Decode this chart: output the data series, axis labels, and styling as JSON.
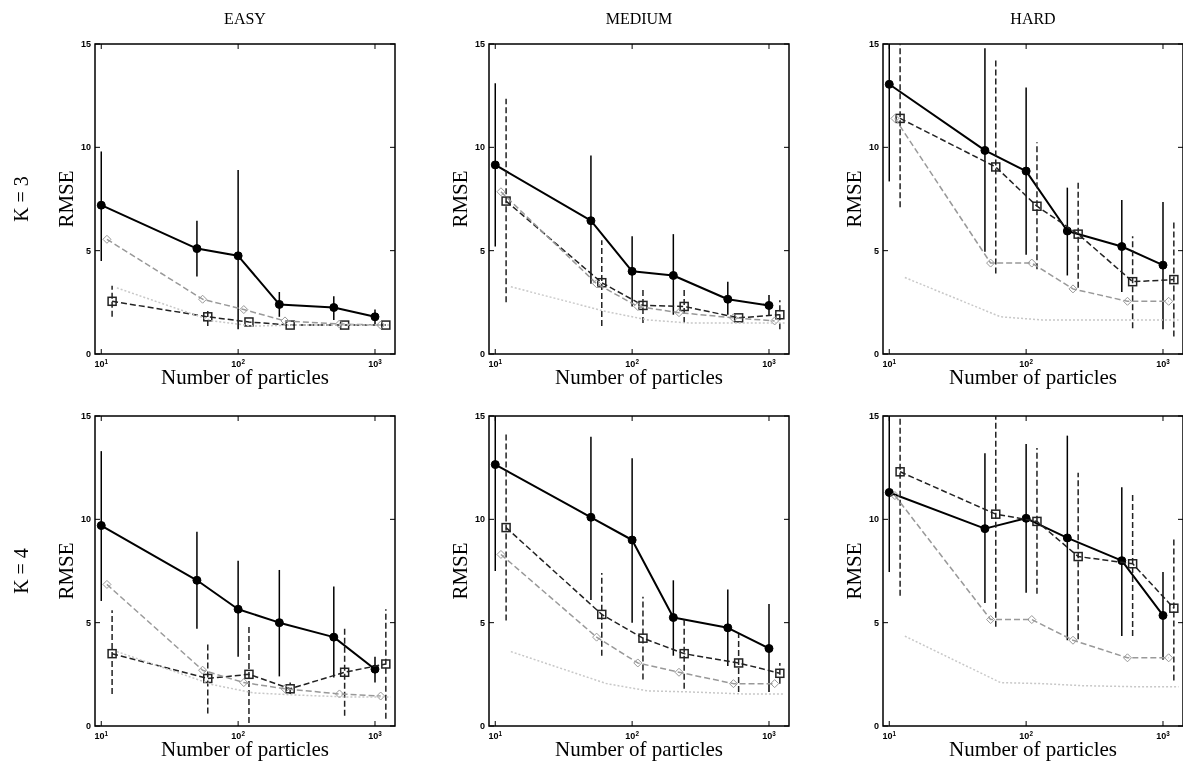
{
  "chart_data": [
    {
      "type": "line",
      "title": "EASY",
      "xlabel": "Number of particles",
      "ylabel": "RMSE",
      "annotations": [
        "K = 3"
      ],
      "log": "x",
      "xlim": [
        9,
        1400
      ],
      "xticks": [
        {
          "value": 10,
          "label": "10$^{1}$"
        },
        {
          "value": 100,
          "label": "10$^{2}$"
        },
        {
          "value": 1000,
          "label": "10$^{3}$"
        }
      ],
      "ylim": [
        0,
        15
      ],
      "yticks": [
        0,
        5,
        10,
        15
      ],
      "series": [
        {
          "color": "#000000",
          "marker": "circle",
          "line_style": "solid",
          "x": [
            10,
            50,
            100,
            200,
            500,
            1000
          ],
          "values": [
            7.2,
            5.1,
            4.75,
            2.4,
            2.25,
            1.8
          ],
          "errors": [
            [
              4.5,
              9.8
            ],
            [
              3.75,
              6.45
            ],
            [
              1.2,
              8.9
            ],
            [
              1.8,
              3.0
            ],
            [
              1.65,
              2.8
            ],
            [
              1.45,
              2.15
            ]
          ]
        },
        {
          "color": "#222222",
          "marker": "square",
          "line_style": "dashed",
          "x": [
            12,
            60,
            120,
            240,
            600,
            1200
          ],
          "values": [
            2.55,
            1.8,
            1.55,
            1.4,
            1.4,
            1.4
          ],
          "errors": [
            [
              1.8,
              3.3
            ],
            [
              1.35,
              2.15
            ],
            null,
            null,
            null,
            null
          ]
        },
        {
          "color": "#999999",
          "marker": "diamond",
          "line_style": "dashed",
          "x": [
            11,
            55,
            110,
            220,
            550,
            1100
          ],
          "values": [
            5.55,
            2.65,
            2.15,
            1.6,
            1.45,
            1.4
          ]
        },
        {
          "color": "#c8c8c8",
          "marker": "none",
          "line_style": "dotted",
          "x": [
            13,
            65,
            130,
            260,
            650,
            1300
          ],
          "values": [
            3.2,
            1.6,
            1.35,
            1.4,
            1.4,
            1.4
          ]
        }
      ]
    },
    {
      "type": "line",
      "title": "MEDIUM",
      "xlabel": "Number of particles",
      "ylabel": "RMSE",
      "log": "x",
      "xlim": [
        9,
        1400
      ],
      "xticks": [
        {
          "value": 10,
          "label": "10$^{1}$"
        },
        {
          "value": 100,
          "label": "10$^{2}$"
        },
        {
          "value": 1000,
          "label": "10$^{3}$"
        }
      ],
      "ylim": [
        0,
        15
      ],
      "yticks": [
        0,
        5,
        10,
        15
      ],
      "series": [
        {
          "color": "#000000",
          "marker": "circle",
          "line_style": "solid",
          "x": [
            10,
            50,
            100,
            200,
            500,
            1000
          ],
          "values": [
            9.15,
            6.45,
            4.0,
            3.8,
            2.65,
            2.35
          ],
          "errors": [
            [
              5.2,
              13.1
            ],
            [
              3.4,
              9.6
            ],
            [
              2.3,
              5.7
            ],
            [
              1.9,
              5.8
            ],
            [
              1.9,
              3.5
            ],
            [
              1.85,
              2.85
            ]
          ]
        },
        {
          "color": "#222222",
          "marker": "square",
          "line_style": "dashed",
          "x": [
            12,
            60,
            120,
            240,
            600,
            1200
          ],
          "values": [
            7.4,
            3.45,
            2.35,
            2.3,
            1.75,
            1.9
          ],
          "errors": [
            [
              2.5,
              12.35
            ],
            [
              1.35,
              5.5
            ],
            [
              1.5,
              3.2
            ],
            [
              1.5,
              3.2
            ],
            null,
            [
              1.2,
              2.6
            ]
          ]
        },
        {
          "color": "#999999",
          "marker": "diamond",
          "line_style": "dashed",
          "x": [
            11,
            55,
            110,
            220,
            550,
            1100
          ],
          "values": [
            7.85,
            3.4,
            2.3,
            2.0,
            1.75,
            1.6
          ]
        },
        {
          "color": "#c8c8c8",
          "marker": "none",
          "line_style": "dotted",
          "x": [
            13,
            65,
            130,
            260,
            650,
            1300
          ],
          "values": [
            3.25,
            2.05,
            1.65,
            1.5,
            1.5,
            1.5
          ]
        }
      ]
    },
    {
      "type": "line",
      "title": "HARD",
      "xlabel": "Number of particles",
      "ylabel": "RMSE",
      "log": "x",
      "xlim": [
        9,
        1400
      ],
      "xticks": [
        {
          "value": 10,
          "label": "10$^{1}$"
        },
        {
          "value": 100,
          "label": "10$^{2}$"
        },
        {
          "value": 1000,
          "label": "10$^{3}$"
        }
      ],
      "ylim": [
        0,
        15
      ],
      "yticks": [
        0,
        5,
        10,
        15
      ],
      "series": [
        {
          "color": "#000000",
          "marker": "circle",
          "line_style": "solid",
          "x": [
            10,
            50,
            100,
            200,
            500,
            1000
          ],
          "values": [
            13.05,
            9.85,
            8.85,
            5.95,
            5.2,
            4.3
          ],
          "errors": [
            [
              8.35,
              15
            ],
            [
              4.95,
              14.8
            ],
            [
              4.8,
              12.9
            ],
            [
              3.8,
              8.05
            ],
            [
              3.0,
              7.45
            ],
            [
              1.2,
              7.35
            ]
          ]
        },
        {
          "color": "#222222",
          "marker": "square",
          "line_style": "dashed",
          "x": [
            12,
            60,
            120,
            240,
            600,
            1200
          ],
          "values": [
            11.4,
            9.05,
            7.15,
            5.8,
            3.5,
            3.6
          ],
          "errors": [
            [
              7.1,
              15
            ],
            [
              3.9,
              14.25
            ],
            [
              4.1,
              10.25
            ],
            [
              3.2,
              8.4
            ],
            [
              1.25,
              5.7
            ],
            [
              0.85,
              6.4
            ]
          ]
        },
        {
          "color": "#999999",
          "marker": "diamond",
          "line_style": "dashed",
          "x": [
            11,
            55,
            110,
            220,
            550,
            1100
          ],
          "values": [
            11.4,
            4.4,
            4.4,
            3.15,
            2.55,
            2.55
          ]
        },
        {
          "color": "#c8c8c8",
          "marker": "none",
          "line_style": "dotted",
          "x": [
            13,
            65,
            130,
            260,
            650,
            1300
          ],
          "values": [
            3.7,
            1.8,
            1.65,
            1.65,
            1.65,
            1.65
          ]
        }
      ]
    },
    {
      "type": "line",
      "xlabel": "Number of particles",
      "ylabel": "RMSE",
      "annotations": [
        "K = 4"
      ],
      "log": "x",
      "xlim": [
        9,
        1400
      ],
      "xticks": [
        {
          "value": 10,
          "label": "10$^{1}$"
        },
        {
          "value": 100,
          "label": "10$^{2}$"
        },
        {
          "value": 1000,
          "label": "10$^{3}$"
        }
      ],
      "ylim": [
        0,
        15
      ],
      "yticks": [
        0,
        5,
        10,
        15
      ],
      "series": [
        {
          "color": "#000000",
          "marker": "circle",
          "line_style": "solid",
          "x": [
            10,
            50,
            100,
            200,
            500,
            1000
          ],
          "values": [
            9.7,
            7.05,
            5.65,
            5.0,
            4.3,
            2.75
          ],
          "errors": [
            [
              6.05,
              13.3
            ],
            [
              4.7,
              9.4
            ],
            [
              3.35,
              8.0
            ],
            [
              2.4,
              7.55
            ],
            [
              2.35,
              6.75
            ],
            [
              2.1,
              3.35
            ]
          ]
        },
        {
          "color": "#222222",
          "marker": "square",
          "line_style": "dashed",
          "x": [
            12,
            60,
            120,
            240,
            600,
            1200
          ],
          "values": [
            3.5,
            2.3,
            2.5,
            1.8,
            2.6,
            3.0
          ],
          "errors": [
            [
              1.55,
              5.6
            ],
            [
              0.6,
              4.0
            ],
            [
              0.15,
              4.8
            ],
            [
              1.55,
              2.1
            ],
            [
              0.5,
              4.75
            ],
            [
              0.35,
              5.65
            ]
          ]
        },
        {
          "color": "#999999",
          "marker": "diamond",
          "line_style": "dashed",
          "x": [
            11,
            55,
            110,
            220,
            550,
            1100
          ],
          "values": [
            6.85,
            2.7,
            2.1,
            1.8,
            1.55,
            1.45
          ]
        },
        {
          "color": "#c8c8c8",
          "marker": "none",
          "line_style": "dotted",
          "x": [
            13,
            65,
            130,
            260,
            650,
            1300
          ],
          "values": [
            3.6,
            2.0,
            1.6,
            1.5,
            1.4,
            1.4
          ]
        }
      ]
    },
    {
      "type": "line",
      "xlabel": "Number of particles",
      "ylabel": "RMSE",
      "log": "x",
      "xlim": [
        9,
        1400
      ],
      "xticks": [
        {
          "value": 10,
          "label": "10$^{1}$"
        },
        {
          "value": 100,
          "label": "10$^{2}$"
        },
        {
          "value": 1000,
          "label": "10$^{3}$"
        }
      ],
      "ylim": [
        0,
        15
      ],
      "yticks": [
        0,
        5,
        10,
        15
      ],
      "series": [
        {
          "color": "#000000",
          "marker": "circle",
          "line_style": "solid",
          "x": [
            10,
            50,
            100,
            200,
            500,
            1000
          ],
          "values": [
            12.65,
            10.1,
            9.0,
            5.25,
            4.75,
            3.75
          ],
          "errors": [
            [
              7.5,
              15
            ],
            [
              6.1,
              14.0
            ],
            [
              5.0,
              12.95
            ],
            [
              3.4,
              7.05
            ],
            [
              2.9,
              6.6
            ],
            [
              1.65,
              5.9
            ]
          ]
        },
        {
          "color": "#222222",
          "marker": "square",
          "line_style": "dashed",
          "x": [
            12,
            60,
            120,
            240,
            600,
            1200
          ],
          "values": [
            9.6,
            5.4,
            4.25,
            3.5,
            3.05,
            2.55
          ],
          "errors": [
            [
              5.1,
              14.1
            ],
            [
              3.4,
              7.4
            ],
            [
              2.25,
              6.25
            ],
            [
              1.8,
              5.15
            ],
            [
              1.65,
              4.45
            ],
            [
              2.05,
              3.05
            ]
          ]
        },
        {
          "color": "#999999",
          "marker": "diamond",
          "line_style": "dashed",
          "x": [
            11,
            55,
            110,
            220,
            550,
            1100
          ],
          "values": [
            8.3,
            4.3,
            3.05,
            2.6,
            2.05,
            2.05
          ]
        },
        {
          "color": "#c8c8c8",
          "marker": "none",
          "line_style": "dotted",
          "x": [
            13,
            65,
            130,
            260,
            650,
            1300
          ],
          "values": [
            3.6,
            2.05,
            1.7,
            1.65,
            1.55,
            1.55
          ]
        }
      ]
    },
    {
      "type": "line",
      "xlabel": "Number of particles",
      "ylabel": "RMSE",
      "log": "x",
      "xlim": [
        9,
        1400
      ],
      "xticks": [
        {
          "value": 10,
          "label": "10$^{1}$"
        },
        {
          "value": 100,
          "label": "10$^{2}$"
        },
        {
          "value": 1000,
          "label": "10$^{3}$"
        }
      ],
      "ylim": [
        0,
        15
      ],
      "yticks": [
        0,
        5,
        10,
        15
      ],
      "series": [
        {
          "color": "#000000",
          "marker": "circle",
          "line_style": "solid",
          "x": [
            10,
            50,
            100,
            200,
            500,
            1000
          ],
          "values": [
            11.3,
            9.55,
            10.05,
            9.1,
            8.0,
            5.35
          ],
          "errors": [
            [
              7.45,
              15
            ],
            [
              5.95,
              13.2
            ],
            [
              6.45,
              13.65
            ],
            [
              4.15,
              14.05
            ],
            [
              4.35,
              11.55
            ],
            [
              3.2,
              7.45
            ]
          ]
        },
        {
          "color": "#222222",
          "marker": "square",
          "line_style": "dashed",
          "x": [
            12,
            60,
            120,
            240,
            600,
            1200
          ],
          "values": [
            12.3,
            10.25,
            9.9,
            8.2,
            7.85,
            5.7
          ],
          "errors": [
            [
              6.3,
              15
            ],
            [
              4.8,
              15
            ],
            [
              6.4,
              13.45
            ],
            [
              4.2,
              12.25
            ],
            [
              4.35,
              11.25
            ],
            [
              2.2,
              9.15
            ]
          ]
        },
        {
          "color": "#999999",
          "marker": "diamond",
          "line_style": "dashed",
          "x": [
            11,
            55,
            110,
            220,
            550,
            1100
          ],
          "values": [
            11.15,
            5.15,
            5.15,
            4.15,
            3.3,
            3.3
          ]
        },
        {
          "color": "#c8c8c8",
          "marker": "none",
          "line_style": "dotted",
          "x": [
            13,
            65,
            130,
            260,
            650,
            1300
          ],
          "values": [
            4.35,
            2.1,
            2.05,
            1.95,
            1.9,
            1.9
          ]
        }
      ]
    }
  ]
}
